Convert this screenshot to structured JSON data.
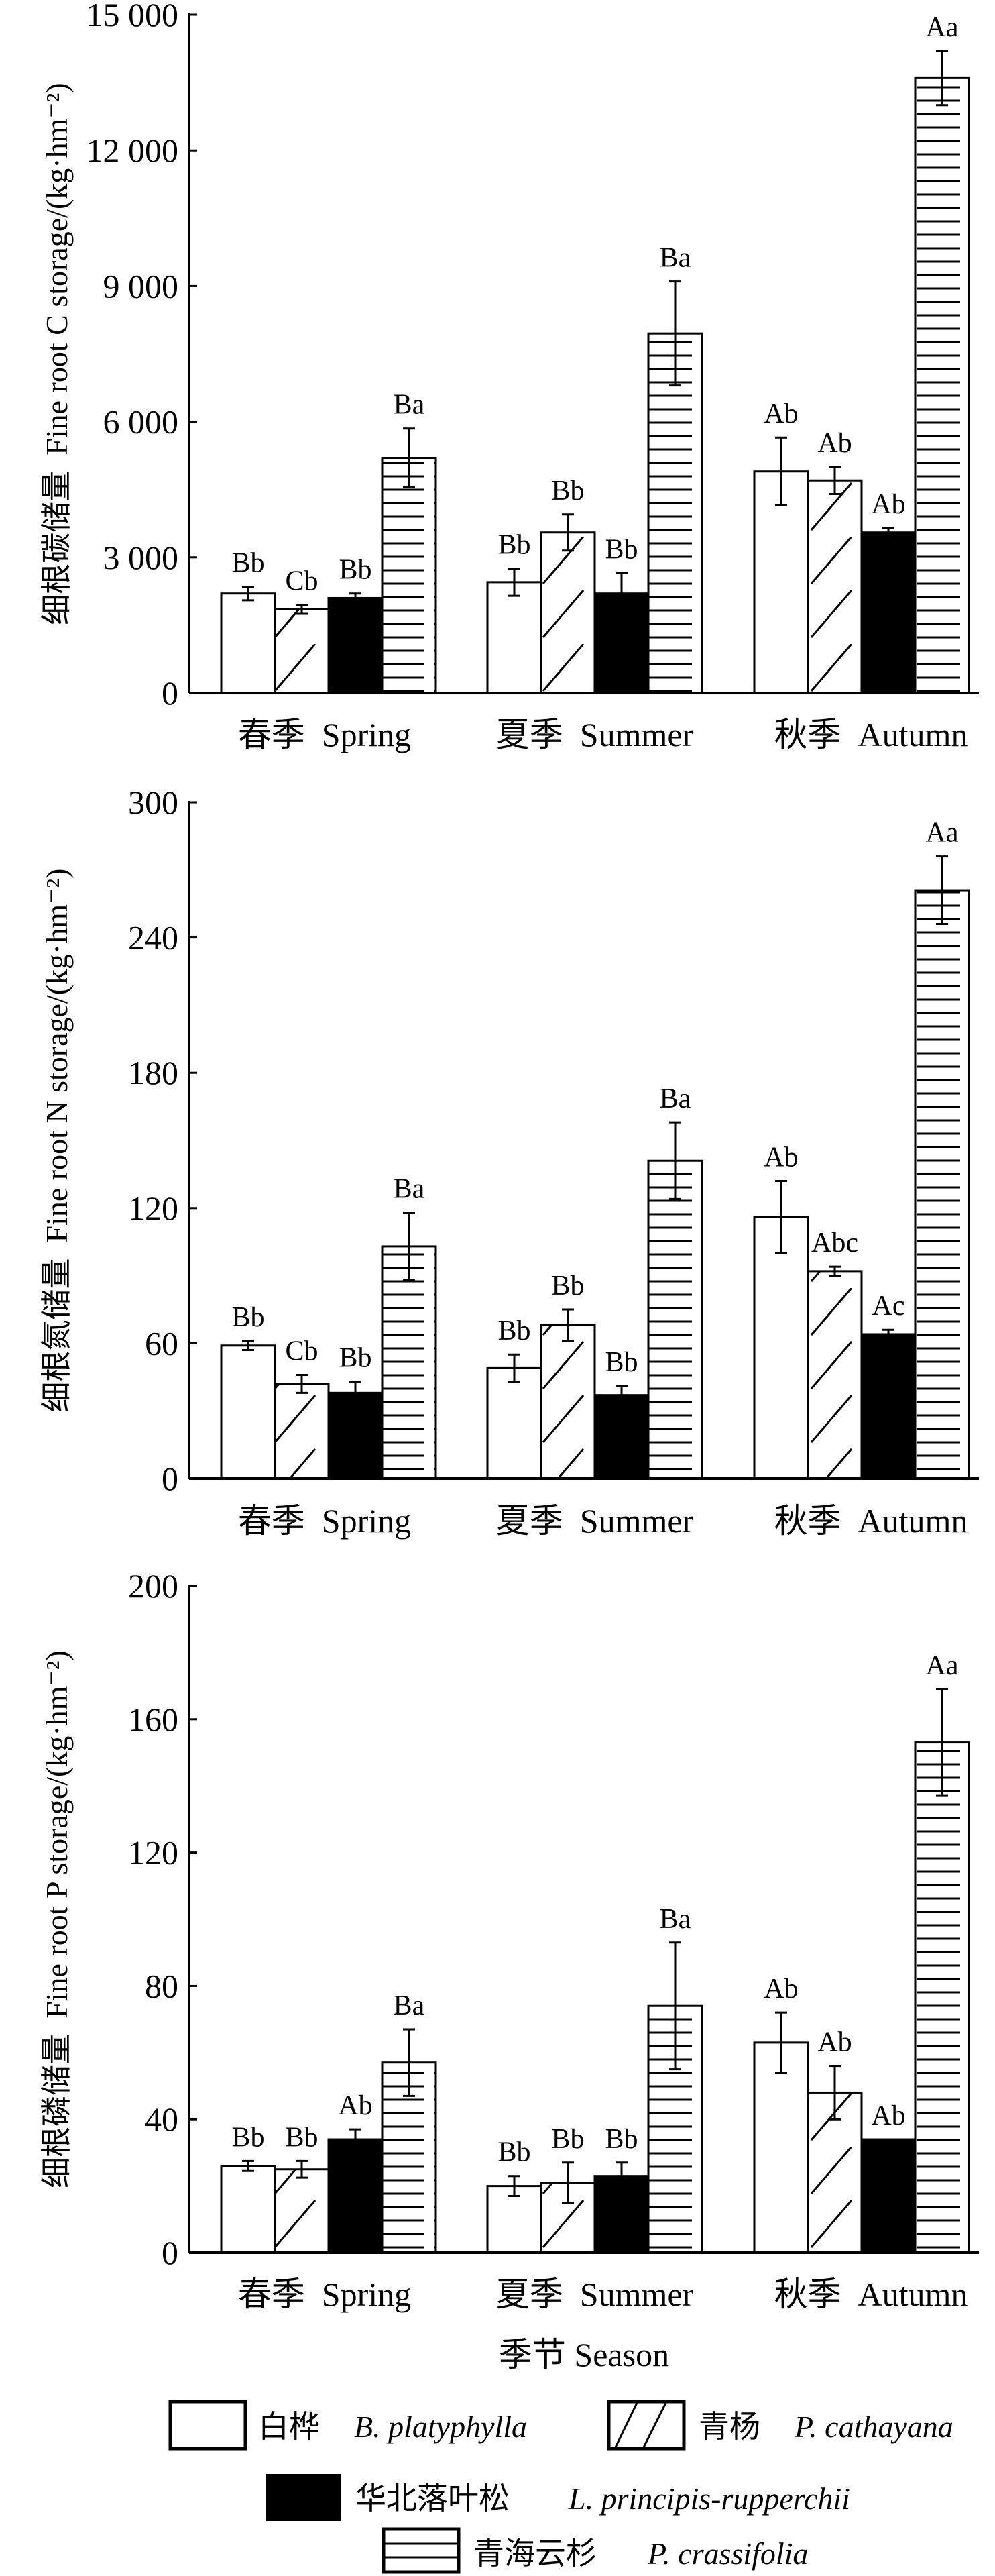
{
  "chart_data": [
    {
      "type": "bar",
      "ylabel": "细根碳储量  Fine root C storage/(kg·hm⁻²)",
      "ylim": [
        0,
        15000
      ],
      "yticks": [
        0,
        3000,
        6000,
        9000,
        12000,
        15000
      ],
      "ytick_labels": [
        "0",
        "3 000",
        "6 000",
        "9 000",
        "12 000",
        "15 000"
      ],
      "categories": [
        "春季  Spring",
        "夏季  Summer",
        "秋季  Autumn"
      ],
      "series": [
        {
          "name": "白桦 B. platyphylla",
          "values": [
            2200,
            2450,
            4900
          ],
          "errors": [
            150,
            300,
            750
          ],
          "labels": [
            "Bb",
            "Bb",
            "Ab"
          ]
        },
        {
          "name": "青杨 P. cathayana",
          "values": [
            1850,
            3550,
            4700
          ],
          "errors": [
            100,
            400,
            300
          ],
          "labels": [
            "Cb",
            "Bb",
            "Ab"
          ]
        },
        {
          "name": "华北落叶松 L. principis-rupperchii",
          "values": [
            2100,
            2200,
            3550
          ],
          "errors": [
            100,
            450,
            100
          ],
          "labels": [
            "Bb",
            "Bb",
            "Ab"
          ]
        },
        {
          "name": "青海云杉 P. crassifolia",
          "values": [
            5200,
            7950,
            13600
          ],
          "errors": [
            650,
            1150,
            600
          ],
          "labels": [
            "Ba",
            "Ba",
            "Aa"
          ]
        }
      ]
    },
    {
      "type": "bar",
      "ylabel": "细根氮储量  Fine root N storage/(kg·hm⁻²)",
      "ylim": [
        0,
        300
      ],
      "yticks": [
        0,
        60,
        120,
        180,
        240,
        300
      ],
      "ytick_labels": [
        "0",
        "60",
        "120",
        "180",
        "240",
        "300"
      ],
      "categories": [
        "春季  Spring",
        "夏季  Summer",
        "秋季  Autumn"
      ],
      "series": [
        {
          "name": "白桦 B. platyphylla",
          "values": [
            59,
            49,
            116
          ],
          "errors": [
            2,
            6,
            16
          ],
          "labels": [
            "Bb",
            "Bb",
            "Ab"
          ]
        },
        {
          "name": "青杨 P. cathayana",
          "values": [
            42,
            68,
            92
          ],
          "errors": [
            4,
            7,
            2
          ],
          "labels": [
            "Cb",
            "Bb",
            "Abc"
          ]
        },
        {
          "name": "华北落叶松 L. principis-rupperchii",
          "values": [
            38,
            37,
            64
          ],
          "errors": [
            5,
            4,
            2
          ],
          "labels": [
            "Bb",
            "Bb",
            "Ac"
          ]
        },
        {
          "name": "青海云杉 P. crassifolia",
          "values": [
            103,
            141,
            261
          ],
          "errors": [
            15,
            17,
            15
          ],
          "labels": [
            "Ba",
            "Ba",
            "Aa"
          ]
        }
      ]
    },
    {
      "type": "bar",
      "ylabel": "细根磷储量  Fine root P storage/(kg·hm⁻²)",
      "xlabel": "季节  Season",
      "ylim": [
        0,
        200
      ],
      "yticks": [
        0,
        40,
        80,
        120,
        160,
        200
      ],
      "ytick_labels": [
        "0",
        "40",
        "80",
        "120",
        "160",
        "200"
      ],
      "categories": [
        "春季  Spring",
        "夏季  Summer",
        "秋季  Autumn"
      ],
      "series": [
        {
          "name": "白桦 B. platyphylla",
          "values": [
            26,
            20,
            63
          ],
          "errors": [
            1.5,
            3,
            9
          ],
          "labels": [
            "Bb",
            "Bb",
            "Ab"
          ]
        },
        {
          "name": "青杨 P. cathayana",
          "values": [
            25,
            21,
            48
          ],
          "errors": [
            2.5,
            6,
            8
          ],
          "labels": [
            "Bb",
            "Bb",
            "Ab"
          ]
        },
        {
          "name": "华北落叶松 L. principis-rupperchii",
          "values": [
            34,
            23,
            34
          ],
          "errors": [
            3,
            4,
            0
          ],
          "labels": [
            "Ab",
            "Bb",
            "Ab"
          ]
        },
        {
          "name": "青海云杉 P. crassifolia",
          "values": [
            57,
            74,
            153
          ],
          "errors": [
            10,
            19,
            16
          ],
          "labels": [
            "Ba",
            "Ba",
            "Aa"
          ]
        }
      ]
    }
  ],
  "legend": {
    "placement": "bottom",
    "items": [
      {
        "cn": "白桦",
        "latin": "B. platyphylla"
      },
      {
        "cn": "青杨",
        "latin": "P. cathayana"
      },
      {
        "cn": "华北落叶松",
        "latin": "L. principis-rupperchii"
      },
      {
        "cn": "青海云杉",
        "latin": "P. crassifolia"
      }
    ]
  }
}
